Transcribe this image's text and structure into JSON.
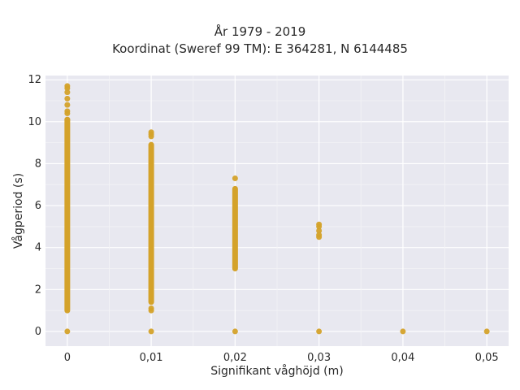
{
  "chart_data": {
    "type": "scatter",
    "title": "År 1979 - 2019",
    "subtitle": "Koordinat (Sweref 99 TM): E 364281, N 6144485",
    "xlabel": "Signifikant våghöjd (m)",
    "ylabel": "Vågperiod (s)",
    "xlim": [
      -0.0026,
      0.0526
    ],
    "ylim": [
      -0.7,
      12.2
    ],
    "x_ticks": [
      0,
      0.01,
      0.02,
      0.03,
      0.04,
      0.05
    ],
    "x_tick_labels": [
      "0",
      "0,01",
      "0,02",
      "0,03",
      "0,04",
      "0,05"
    ],
    "y_ticks": [
      0,
      2,
      4,
      6,
      8,
      10,
      12
    ],
    "y_tick_labels": [
      "0",
      "2",
      "4",
      "6",
      "8",
      "10",
      "12"
    ],
    "grid": true,
    "marker_color": "#D4A22A",
    "background_color": "#E8E8F0",
    "series": [
      {
        "points": [
          {
            "x": 0,
            "y": 0
          },
          {
            "x": 0,
            "y": 11.7
          },
          {
            "x": 0,
            "y": 11.6
          },
          {
            "x": 0,
            "y": 11.4
          },
          {
            "x": 0,
            "y": 11.1
          },
          {
            "x": 0,
            "y": 10.8
          },
          {
            "x": 0,
            "y": 10.5
          },
          {
            "x": 0,
            "y": 10.4
          },
          {
            "x": 0,
            "y": 10.1
          }
        ],
        "ranges": [
          {
            "x": 0,
            "y_min": 1.0,
            "y_max": 10.1
          }
        ]
      },
      {
        "points": [
          {
            "x": 0.01,
            "y": 0
          },
          {
            "x": 0.01,
            "y": 9.5
          },
          {
            "x": 0.01,
            "y": 9.4
          },
          {
            "x": 0.01,
            "y": 9.3
          },
          {
            "x": 0.01,
            "y": 1.1
          },
          {
            "x": 0.01,
            "y": 1.0
          }
        ],
        "ranges": [
          {
            "x": 0.01,
            "y_min": 1.4,
            "y_max": 8.9
          }
        ]
      },
      {
        "points": [
          {
            "x": 0.02,
            "y": 0
          },
          {
            "x": 0.02,
            "y": 7.3
          }
        ],
        "ranges": [
          {
            "x": 0.02,
            "y_min": 3.0,
            "y_max": 6.8
          }
        ]
      },
      {
        "points": [
          {
            "x": 0.03,
            "y": 0
          },
          {
            "x": 0.03,
            "y": 5.1
          },
          {
            "x": 0.03,
            "y": 5.0
          },
          {
            "x": 0.03,
            "y": 4.8
          },
          {
            "x": 0.03,
            "y": 4.6
          },
          {
            "x": 0.03,
            "y": 4.5
          }
        ]
      },
      {
        "points": [
          {
            "x": 0.04,
            "y": 0
          }
        ]
      },
      {
        "points": [
          {
            "x": 0.05,
            "y": 0
          }
        ]
      }
    ]
  }
}
